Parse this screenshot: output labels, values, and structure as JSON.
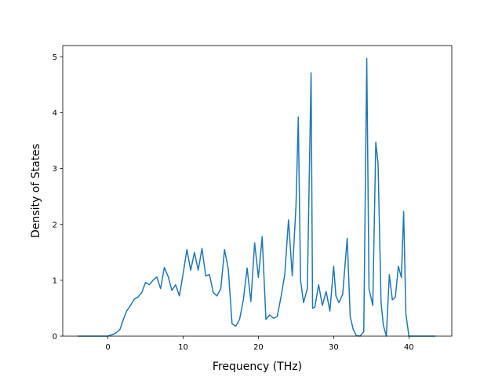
{
  "chart_data": {
    "type": "line",
    "title": "",
    "xlabel": "Frequency (THz)",
    "ylabel": "Density of States",
    "xlim": [
      -6.0,
      45.7
    ],
    "ylim": [
      0,
      5.2
    ],
    "x_ticks": [
      0,
      10,
      20,
      30,
      40
    ],
    "y_ticks": [
      0,
      1,
      2,
      3,
      4,
      5
    ],
    "grid": false,
    "legend": "none",
    "colors": {
      "line": "#1f77b4"
    },
    "series": [
      {
        "x": [
          -4.0,
          -2.0,
          0.0,
          1.0,
          1.6,
          2.0,
          2.5,
          3.0,
          3.5,
          4.0,
          4.5,
          5.0,
          5.5,
          6.0,
          6.5,
          7.0,
          7.5,
          8.0,
          8.5,
          9.0,
          9.5,
          10.0,
          10.5,
          11.0,
          11.5,
          12.0,
          12.5,
          13.0,
          13.5,
          14.0,
          14.5,
          15.0,
          15.5,
          16.0,
          16.5,
          17.0,
          17.5,
          18.0,
          18.5,
          19.0,
          19.5,
          20.0,
          20.5,
          21.0,
          21.5,
          22.0,
          22.5,
          23.0,
          23.5,
          24.0,
          24.5,
          25.0,
          25.3,
          25.6,
          26.0,
          26.5,
          27.0,
          27.2,
          27.5,
          28.0,
          28.5,
          29.0,
          29.5,
          30.0,
          30.3,
          30.7,
          31.2,
          31.8,
          32.2,
          32.6,
          33.0,
          33.5,
          34.0,
          34.4,
          34.7,
          35.2,
          35.6,
          35.9,
          36.3,
          36.6,
          37.0,
          37.4,
          37.8,
          38.2,
          38.6,
          39.0,
          39.3,
          39.6,
          40.0,
          41.0,
          43.5
        ],
        "y": [
          0.0,
          0.0,
          0.0,
          0.05,
          0.12,
          0.28,
          0.45,
          0.55,
          0.66,
          0.7,
          0.78,
          0.96,
          0.92,
          1.0,
          1.06,
          0.85,
          1.23,
          1.07,
          0.82,
          0.92,
          0.72,
          1.12,
          1.55,
          1.18,
          1.5,
          1.18,
          1.57,
          1.08,
          1.1,
          0.78,
          0.72,
          0.85,
          1.55,
          1.2,
          0.22,
          0.18,
          0.3,
          0.65,
          1.22,
          0.62,
          1.67,
          1.05,
          1.78,
          0.3,
          0.38,
          0.32,
          0.35,
          0.7,
          1.1,
          2.08,
          1.08,
          2.35,
          3.92,
          1.0,
          0.6,
          0.85,
          4.71,
          0.5,
          0.52,
          0.92,
          0.55,
          0.8,
          0.45,
          1.25,
          0.72,
          0.6,
          0.75,
          1.75,
          0.35,
          0.12,
          0.01,
          0.0,
          0.08,
          4.97,
          0.85,
          0.55,
          3.47,
          3.1,
          0.6,
          0.2,
          0.0,
          1.1,
          0.65,
          0.7,
          1.25,
          1.05,
          2.23,
          0.4,
          0.0,
          0.0,
          0.0
        ]
      }
    ]
  }
}
